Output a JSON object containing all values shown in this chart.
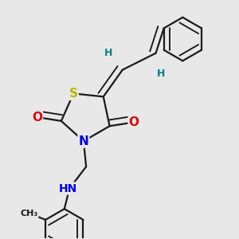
{
  "background_color": "#e8e8e8",
  "bond_color": "#1a1a1a",
  "atom_colors": {
    "S": "#b8b800",
    "N": "#0000ee",
    "O": "#dd0000",
    "H": "#008080",
    "C": "#1a1a1a"
  },
  "lw": 1.6,
  "dbo": 0.012,
  "figsize": [
    3.0,
    3.0
  ],
  "dpi": 100
}
